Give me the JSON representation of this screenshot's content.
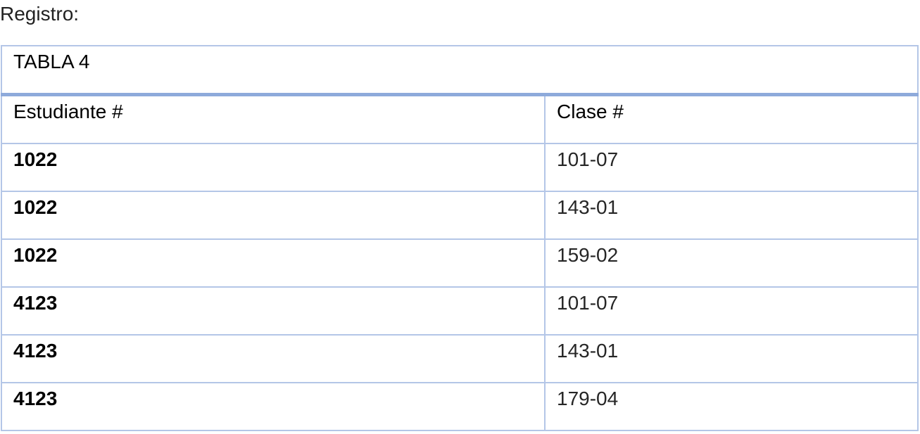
{
  "intro_text": "Registro:",
  "table": {
    "caption": "TABLA 4",
    "headers": {
      "student": "Estudiante #",
      "class": "Clase #"
    },
    "rows": [
      {
        "student": "1022",
        "class": "101-07"
      },
      {
        "student": "1022",
        "class": "143-01"
      },
      {
        "student": "1022",
        "class": "159-02"
      },
      {
        "student": "4123",
        "class": "101-07"
      },
      {
        "student": "4123",
        "class": "143-01"
      },
      {
        "student": "4123",
        "class": "179-04"
      }
    ]
  },
  "colors": {
    "border": "#b4c6e7",
    "caption_rule": "#8eaadb"
  }
}
